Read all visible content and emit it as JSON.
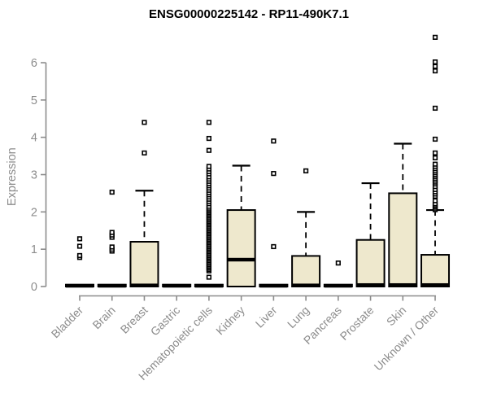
{
  "colors": {
    "background": "#FFFFFF",
    "box_fill": "#EEE8CD",
    "ink": "#000000",
    "axis": "#8C8C8C",
    "title": "#000000"
  },
  "chart_data": {
    "type": "boxplot",
    "title": "ENSG00000225142 - RP11-490K7.1",
    "xlabel": "",
    "ylabel": "Expression",
    "yticks": [
      0,
      1,
      2,
      3,
      4,
      5,
      6
    ],
    "ylim": [
      0,
      6.9
    ],
    "grid": false,
    "categories": [
      "Bladder",
      "Brain",
      "Breast",
      "Gastric",
      "Hematopoietic cells",
      "Kidney",
      "Liver",
      "Lung",
      "Pancreas",
      "Prostate",
      "Skin",
      "Unknown / Other"
    ],
    "boxes": [
      {
        "category": "Bladder",
        "whisker_low": 0,
        "q1": 0,
        "median": 0.02,
        "q3": 0.05,
        "whisker_high": 0.05,
        "outliers": [
          0.78,
          0.83,
          1.08,
          1.28
        ]
      },
      {
        "category": "Brain",
        "whisker_low": 0,
        "q1": 0,
        "median": 0.02,
        "q3": 0.05,
        "whisker_high": 0.05,
        "outliers": [
          0.95,
          1.0,
          1.06,
          1.32,
          1.38,
          1.45,
          2.53
        ]
      },
      {
        "category": "Breast",
        "whisker_low": 0,
        "q1": 0,
        "median": 0.03,
        "q3": 1.2,
        "whisker_high": 2.57,
        "outliers": [
          3.58,
          4.4
        ]
      },
      {
        "category": "Gastric",
        "whisker_low": 0,
        "q1": 0,
        "median": 0.02,
        "q3": 0.05,
        "whisker_high": 0.05,
        "outliers": []
      },
      {
        "category": "Hematopoietic cells",
        "whisker_low": 0,
        "q1": 0,
        "median": 0.02,
        "q3": 0.05,
        "whisker_high": 0.05,
        "outliers": [
          0.25,
          0.42,
          0.46,
          0.5,
          0.54,
          0.58,
          0.62,
          0.66,
          0.7,
          0.74,
          0.78,
          0.82,
          0.86,
          0.9,
          0.94,
          0.98,
          1.02,
          1.06,
          1.1,
          1.14,
          1.18,
          1.22,
          1.26,
          1.3,
          1.34,
          1.38,
          1.42,
          1.46,
          1.5,
          1.54,
          1.58,
          1.62,
          1.66,
          1.7,
          1.74,
          1.78,
          1.82,
          1.86,
          1.9,
          1.94,
          1.98,
          2.02,
          2.06,
          2.1,
          2.15,
          2.22,
          2.28,
          2.34,
          2.4,
          2.46,
          2.52,
          2.58,
          2.64,
          2.7,
          2.76,
          2.82,
          2.88,
          2.94,
          3.02,
          3.08,
          3.15,
          3.22,
          3.65,
          3.97,
          4.4
        ]
      },
      {
        "category": "Kidney",
        "whisker_low": 0,
        "q1": 0,
        "median": 0.72,
        "q3": 2.05,
        "whisker_high": 3.24,
        "outliers": []
      },
      {
        "category": "Liver",
        "whisker_low": 0,
        "q1": 0,
        "median": 0.02,
        "q3": 0.05,
        "whisker_high": 0.05,
        "outliers": [
          1.07,
          3.03,
          3.9
        ]
      },
      {
        "category": "Lung",
        "whisker_low": 0,
        "q1": 0,
        "median": 0.03,
        "q3": 0.82,
        "whisker_high": 2.0,
        "outliers": [
          3.1
        ]
      },
      {
        "category": "Pancreas",
        "whisker_low": 0,
        "q1": 0,
        "median": 0.02,
        "q3": 0.05,
        "whisker_high": 0.05,
        "outliers": [
          0.63
        ]
      },
      {
        "category": "Prostate",
        "whisker_low": 0,
        "q1": 0,
        "median": 0.04,
        "q3": 1.25,
        "whisker_high": 2.77,
        "outliers": []
      },
      {
        "category": "Skin",
        "whisker_low": 0,
        "q1": 0,
        "median": 0.04,
        "q3": 2.5,
        "whisker_high": 3.83,
        "outliers": []
      },
      {
        "category": "Unknown / Other",
        "whisker_low": 0,
        "q1": 0,
        "median": 0.04,
        "q3": 0.85,
        "whisker_high": 2.05,
        "outliers": [
          2.06,
          2.1,
          2.14,
          2.18,
          2.22,
          2.3,
          2.42,
          2.48,
          2.54,
          2.6,
          2.68,
          2.75,
          2.8,
          2.85,
          2.9,
          2.95,
          3.0,
          3.05,
          3.1,
          3.16,
          3.22,
          3.28,
          3.45,
          3.58,
          3.95,
          4.78,
          5.78,
          5.9,
          6.02,
          6.68
        ]
      }
    ],
    "legend": null
  }
}
